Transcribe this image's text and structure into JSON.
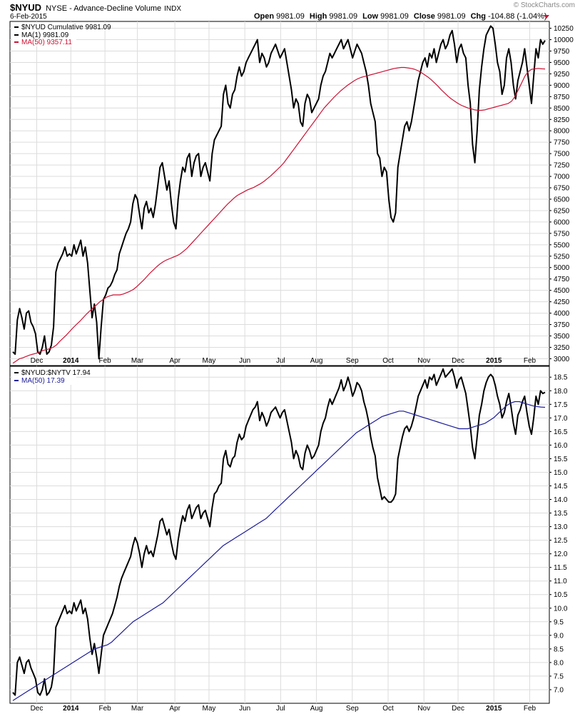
{
  "header": {
    "symbol": "$NYUD",
    "description": "NYSE - Advance-Decline Volume",
    "exchange": "INDX",
    "date": "6-Feb-2015",
    "watermark": "© StockCharts.com",
    "open_label": "Open",
    "open_value": "9981.09",
    "high_label": "High",
    "high_value": "9981.09",
    "low_label": "Low",
    "low_value": "9981.09",
    "close_label": "Close",
    "close_value": "9981.09",
    "chg_label": "Chg",
    "chg_value": "-104.88 (-1.04%)"
  },
  "colors": {
    "price": "#000000",
    "ma_top": "#cc1133",
    "ma_bottom": "#1a1a99",
    "grid": "#dcdcdc",
    "down_arrow": "#cc1133"
  },
  "chart_data": [
    {
      "type": "line",
      "legend": [
        "$NYUD Cumulative 9981.09",
        "MA(1) 9981.09",
        "MA(50) 9357.11"
      ],
      "ylim": [
        2850,
        10400
      ],
      "y_ticks": [
        "3000",
        "3250",
        "3500",
        "3750",
        "4000",
        "4250",
        "4500",
        "4750",
        "5000",
        "5250",
        "5500",
        "5750",
        "6000",
        "6250",
        "6500",
        "6750",
        "7000",
        "7250",
        "7500",
        "7750",
        "8000",
        "8250",
        "8500",
        "8750",
        "9000",
        "9250",
        "9500",
        "9750",
        "10000",
        "10250"
      ],
      "x_ticks": [
        "Dec",
        "2014",
        "Feb",
        "Mar",
        "Apr",
        "May",
        "Jun",
        "Jul",
        "Aug",
        "Sep",
        "Oct",
        "Nov",
        "Dec",
        "2015",
        "Feb"
      ],
      "xlim": [
        0,
        312
      ],
      "tick_x": [
        14,
        34,
        54,
        73,
        95,
        115,
        136,
        157,
        178,
        199,
        220,
        241,
        261,
        282,
        303
      ],
      "series": [
        {
          "name": "$NYUD Cumulative",
          "values": [
            3150,
            3100,
            3850,
            4100,
            3900,
            3650,
            4000,
            4050,
            3800,
            3700,
            3550,
            3150,
            3100,
            3250,
            3500,
            3100,
            3150,
            3300,
            3700,
            4900,
            5100,
            5200,
            5300,
            5450,
            5250,
            5300,
            5250,
            5500,
            5300,
            5450,
            5600,
            5250,
            5450,
            5100,
            4500,
            3900,
            4200,
            3800,
            3000,
            3700,
            4300,
            4400,
            4550,
            4600,
            4700,
            4850,
            4950,
            5300,
            5450,
            5600,
            5750,
            5850,
            6000,
            6400,
            6600,
            6500,
            6150,
            5850,
            6300,
            6450,
            6200,
            6300,
            6100,
            6400,
            6800,
            7200,
            7300,
            7000,
            6700,
            6900,
            6400,
            6000,
            5850,
            6500,
            6900,
            7200,
            7100,
            7400,
            7500,
            7000,
            7300,
            7450,
            7500,
            7000,
            7200,
            7300,
            7100,
            6900,
            7500,
            7800,
            7900,
            8000,
            8100,
            8800,
            9000,
            8600,
            8500,
            8800,
            8900,
            9200,
            9400,
            9200,
            9300,
            9500,
            9600,
            9700,
            9800,
            9900,
            10000,
            9500,
            9700,
            9600,
            9400,
            9500,
            9700,
            9800,
            9900,
            9750,
            9600,
            9700,
            9800,
            9500,
            9200,
            8900,
            8500,
            8700,
            8600,
            8200,
            8100,
            8600,
            8800,
            8700,
            8400,
            8500,
            8600,
            8700,
            9000,
            9200,
            9300,
            9500,
            9700,
            9600,
            9700,
            9800,
            9900,
            10000,
            9800,
            9900,
            10000,
            9800,
            9600,
            9750,
            9900,
            9800,
            9700,
            9500,
            9300,
            9000,
            8600,
            8400,
            8200,
            7500,
            7400,
            7000,
            7200,
            7100,
            6500,
            6100,
            6000,
            6200,
            7200,
            7500,
            7800,
            8100,
            8200,
            8000,
            8200,
            8500,
            8800,
            9100,
            9300,
            9500,
            9600,
            9400,
            9700,
            9600,
            9800,
            9500,
            9700,
            9900,
            10000,
            9800,
            9900,
            10100,
            10200,
            9900,
            9500,
            9800,
            9900,
            9700,
            9600,
            9000,
            8600,
            7700,
            7300,
            8000,
            8900,
            9400,
            9800,
            10100,
            10200,
            10300,
            10250,
            9900,
            9500,
            9300,
            8800,
            9000,
            9600,
            9800,
            9500,
            9000,
            8700,
            9100,
            9300,
            9500,
            9800,
            9400,
            9000,
            8600,
            9200,
            9800,
            9600,
            10000,
            9900,
            9981
          ]
        },
        {
          "name": "MA(50)",
          "values": [
            2900,
            2950,
            3000,
            3020,
            3050,
            3080,
            3100,
            3120,
            3150,
            3180,
            3200,
            3220,
            3250,
            3300,
            3380,
            3450,
            3520,
            3600,
            3680,
            3750,
            3820,
            3900,
            3980,
            4050,
            4120,
            4180,
            4250,
            4300,
            4350,
            4380,
            4400,
            4400,
            4400,
            4420,
            4450,
            4480,
            4520,
            4580,
            4650,
            4720,
            4800,
            4880,
            4950,
            5020,
            5080,
            5130,
            5170,
            5200,
            5230,
            5260,
            5300,
            5360,
            5420,
            5500,
            5580,
            5660,
            5740,
            5820,
            5900,
            5980,
            6060,
            6140,
            6220,
            6300,
            6380,
            6450,
            6520,
            6580,
            6620,
            6660,
            6700,
            6730,
            6760,
            6800,
            6840,
            6890,
            6950,
            7010,
            7080,
            7150,
            7220,
            7300,
            7400,
            7500,
            7600,
            7700,
            7800,
            7900,
            8000,
            8100,
            8200,
            8300,
            8400,
            8500,
            8580,
            8660,
            8740,
            8810,
            8880,
            8940,
            9000,
            9050,
            9100,
            9140,
            9170,
            9190,
            9210,
            9230,
            9250,
            9270,
            9290,
            9310,
            9330,
            9350,
            9370,
            9380,
            9390,
            9390,
            9380,
            9370,
            9350,
            9320,
            9280,
            9230,
            9180,
            9120,
            9050,
            8980,
            8900,
            8830,
            8760,
            8700,
            8650,
            8600,
            8560,
            8530,
            8500,
            8480,
            8460,
            8450,
            8450,
            8460,
            8480,
            8500,
            8520,
            8540,
            8560,
            8580,
            8600,
            8650,
            8750,
            8900,
            9050,
            9200,
            9300,
            9350,
            9360,
            9370,
            9360,
            9357
          ]
        }
      ]
    },
    {
      "type": "line",
      "legend": [
        "$NYUD:$NYTV 17.94",
        "MA(50) 17.39"
      ],
      "ylim": [
        6.5,
        18.9
      ],
      "y_ticks": [
        "7.0",
        "7.5",
        "8.0",
        "8.5",
        "9.0",
        "9.5",
        "10.0",
        "10.5",
        "11.0",
        "11.5",
        "12.0",
        "12.5",
        "13.0",
        "13.5",
        "14.0",
        "14.5",
        "15.0",
        "15.5",
        "16.0",
        "16.5",
        "17.0",
        "17.5",
        "18.0",
        "18.5"
      ],
      "x_ticks": [
        "Dec",
        "2014",
        "Feb",
        "Mar",
        "Apr",
        "May",
        "Jun",
        "Jul",
        "Aug",
        "Sep",
        "Oct",
        "Nov",
        "Dec",
        "2015",
        "Feb"
      ],
      "series": [
        {
          "name": "$NYUD:$NYTV",
          "values": [
            6.9,
            6.8,
            8.0,
            8.2,
            7.9,
            7.6,
            8.0,
            8.1,
            7.8,
            7.6,
            7.4,
            6.9,
            6.8,
            7.0,
            7.4,
            6.8,
            6.9,
            7.1,
            7.6,
            9.3,
            9.5,
            9.7,
            9.9,
            10.1,
            9.8,
            9.9,
            9.8,
            10.2,
            9.9,
            10.1,
            10.3,
            9.8,
            10.0,
            9.6,
            8.9,
            8.3,
            8.7,
            8.2,
            7.6,
            8.3,
            9.0,
            9.2,
            9.4,
            9.6,
            9.8,
            10.1,
            10.4,
            10.8,
            11.1,
            11.3,
            11.5,
            11.7,
            11.9,
            12.3,
            12.6,
            12.4,
            12.0,
            11.5,
            12.0,
            12.3,
            12.0,
            12.1,
            11.9,
            12.3,
            12.7,
            13.2,
            13.3,
            13.0,
            12.7,
            12.9,
            12.4,
            12.0,
            11.8,
            12.5,
            13.0,
            13.4,
            13.2,
            13.6,
            13.8,
            13.3,
            13.5,
            13.7,
            13.8,
            13.3,
            13.5,
            13.6,
            13.3,
            13.0,
            13.7,
            14.2,
            14.3,
            14.5,
            14.6,
            15.5,
            15.8,
            15.3,
            15.2,
            15.5,
            15.6,
            16.1,
            16.4,
            16.2,
            16.3,
            16.7,
            16.9,
            17.1,
            17.3,
            17.4,
            17.6,
            16.9,
            17.2,
            17.0,
            16.7,
            16.9,
            17.2,
            17.3,
            17.4,
            17.2,
            17.0,
            17.2,
            17.3,
            16.9,
            16.5,
            16.1,
            15.5,
            15.8,
            15.6,
            15.2,
            15.1,
            15.7,
            16.0,
            15.8,
            15.5,
            15.6,
            15.8,
            16.0,
            16.5,
            16.8,
            17.0,
            17.4,
            17.7,
            17.5,
            17.7,
            17.9,
            18.1,
            18.4,
            18.0,
            18.2,
            18.5,
            18.2,
            17.8,
            18.0,
            18.3,
            18.2,
            18.0,
            17.6,
            17.3,
            16.9,
            16.3,
            15.9,
            15.6,
            14.8,
            14.4,
            14.0,
            14.1,
            14.0,
            13.9,
            13.9,
            14.0,
            14.2,
            15.5,
            15.9,
            16.3,
            16.6,
            16.7,
            16.5,
            16.7,
            17.0,
            17.4,
            17.8,
            18.0,
            18.2,
            18.4,
            18.1,
            18.5,
            18.4,
            18.6,
            18.2,
            18.4,
            18.6,
            18.8,
            18.5,
            18.6,
            18.7,
            18.8,
            18.5,
            18.1,
            18.4,
            18.5,
            18.2,
            17.9,
            17.3,
            16.7,
            15.9,
            15.5,
            16.3,
            17.1,
            17.5,
            18.0,
            18.3,
            18.5,
            18.6,
            18.5,
            18.2,
            17.8,
            17.5,
            17.0,
            17.2,
            17.6,
            17.9,
            17.4,
            16.8,
            16.4,
            17.1,
            17.3,
            17.6,
            17.8,
            17.2,
            16.7,
            16.4,
            17.0,
            17.8,
            17.5,
            18.0,
            17.9,
            17.94
          ]
        },
        {
          "name": "MA(50)",
          "values": [
            6.6,
            6.7,
            6.8,
            6.9,
            7.0,
            7.1,
            7.2,
            7.3,
            7.4,
            7.5,
            7.6,
            7.7,
            7.8,
            7.9,
            8.0,
            8.1,
            8.2,
            8.3,
            8.4,
            8.5,
            8.55,
            8.6,
            8.65,
            8.75,
            8.9,
            9.05,
            9.2,
            9.35,
            9.5,
            9.6,
            9.7,
            9.8,
            9.9,
            10.0,
            10.1,
            10.2,
            10.35,
            10.5,
            10.65,
            10.8,
            10.95,
            11.1,
            11.25,
            11.4,
            11.55,
            11.7,
            11.85,
            12.0,
            12.15,
            12.3,
            12.4,
            12.5,
            12.6,
            12.7,
            12.8,
            12.9,
            13.0,
            13.1,
            13.2,
            13.3,
            13.45,
            13.6,
            13.75,
            13.9,
            14.05,
            14.2,
            14.35,
            14.5,
            14.65,
            14.8,
            14.95,
            15.1,
            15.25,
            15.4,
            15.55,
            15.7,
            15.85,
            16.0,
            16.15,
            16.3,
            16.45,
            16.55,
            16.65,
            16.75,
            16.85,
            16.95,
            17.05,
            17.1,
            17.15,
            17.2,
            17.25,
            17.25,
            17.2,
            17.15,
            17.1,
            17.05,
            17.0,
            16.95,
            16.9,
            16.85,
            16.8,
            16.75,
            16.7,
            16.65,
            16.6,
            16.6,
            16.6,
            16.65,
            16.7,
            16.75,
            16.8,
            16.9,
            17.0,
            17.15,
            17.3,
            17.45,
            17.55,
            17.6,
            17.6,
            17.55,
            17.5,
            17.45,
            17.42,
            17.4,
            17.39
          ]
        }
      ]
    }
  ]
}
